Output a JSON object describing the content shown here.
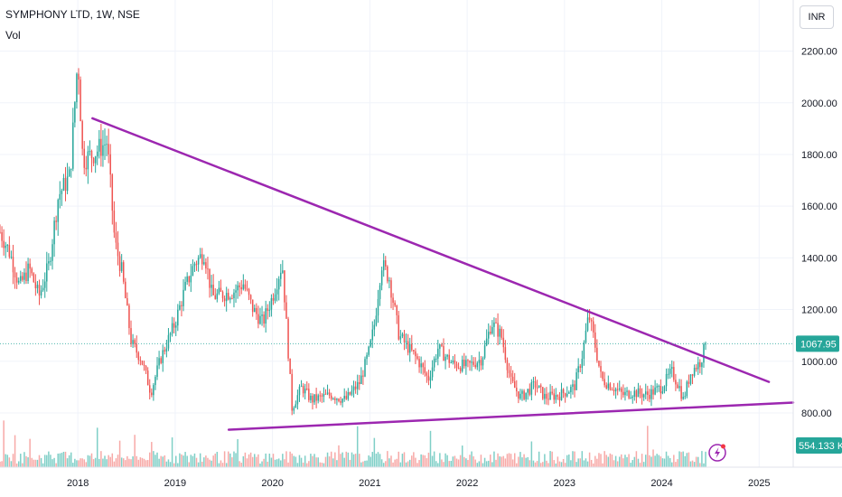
{
  "header": {
    "symbol_title": "SYMPHONY LTD, 1W, NSE",
    "volume_label": "Vol",
    "currency": "INR"
  },
  "colors": {
    "up": "#26a69a",
    "down": "#ef5350",
    "up_volume": "#7fcfc7",
    "down_volume": "#f7a9a7",
    "trendline": "#9c27b0",
    "last_price_line": "#26a69a",
    "grid": "#f0f3fa"
  },
  "chart_data": {
    "type": "candlestick",
    "title": "SYMPHONY LTD, 1W, NSE",
    "x_ticks": [
      "2018",
      "2019",
      "2020",
      "2021",
      "2022",
      "2023",
      "2024",
      "2025"
    ],
    "y_ticks": [
      "2200.00",
      "2000.00",
      "1800.00",
      "1600.00",
      "1400.00",
      "1200.00",
      "1000.00",
      "800.00"
    ],
    "ylim": [
      590,
      2230
    ],
    "xlim": [
      2017.2,
      2025.35
    ],
    "last_price": "1067.95",
    "last_volume": "554.133 K",
    "grid": true,
    "price_path": [
      [
        2017.2,
        1500
      ],
      [
        2017.3,
        1420
      ],
      [
        2017.4,
        1290
      ],
      [
        2017.5,
        1360
      ],
      [
        2017.6,
        1250
      ],
      [
        2017.7,
        1370
      ],
      [
        2017.8,
        1640
      ],
      [
        2017.92,
        1720
      ],
      [
        2018.0,
        2180
      ],
      [
        2018.05,
        1780
      ],
      [
        2018.15,
        1800
      ],
      [
        2018.3,
        1850
      ],
      [
        2018.38,
        1460
      ],
      [
        2018.45,
        1350
      ],
      [
        2018.55,
        1070
      ],
      [
        2018.65,
        1010
      ],
      [
        2018.75,
        880
      ],
      [
        2018.85,
        1010
      ],
      [
        2019.0,
        1150
      ],
      [
        2019.1,
        1280
      ],
      [
        2019.2,
        1380
      ],
      [
        2019.3,
        1420
      ],
      [
        2019.38,
        1250
      ],
      [
        2019.5,
        1260
      ],
      [
        2019.6,
        1270
      ],
      [
        2019.7,
        1300
      ],
      [
        2019.8,
        1200
      ],
      [
        2019.9,
        1150
      ],
      [
        2020.0,
        1250
      ],
      [
        2020.1,
        1380
      ],
      [
        2020.15,
        1100
      ],
      [
        2020.2,
        820
      ],
      [
        2020.3,
        900
      ],
      [
        2020.4,
        850
      ],
      [
        2020.5,
        860
      ],
      [
        2020.6,
        870
      ],
      [
        2020.75,
        850
      ],
      [
        2020.9,
        920
      ],
      [
        2021.0,
        1050
      ],
      [
        2021.05,
        1150
      ],
      [
        2021.12,
        1380
      ],
      [
        2021.2,
        1320
      ],
      [
        2021.3,
        1100
      ],
      [
        2021.5,
        1000
      ],
      [
        2021.6,
        930
      ],
      [
        2021.7,
        1050
      ],
      [
        2021.85,
        990
      ],
      [
        2022.0,
        980
      ],
      [
        2022.15,
        1010
      ],
      [
        2022.25,
        1150
      ],
      [
        2022.35,
        1100
      ],
      [
        2022.45,
        920
      ],
      [
        2022.55,
        860
      ],
      [
        2022.7,
        910
      ],
      [
        2022.8,
        860
      ],
      [
        2022.95,
        870
      ],
      [
        2023.1,
        900
      ],
      [
        2023.18,
        1020
      ],
      [
        2023.25,
        1180
      ],
      [
        2023.3,
        1090
      ],
      [
        2023.38,
        930
      ],
      [
        2023.5,
        900
      ],
      [
        2023.6,
        870
      ],
      [
        2023.7,
        880
      ],
      [
        2023.85,
        870
      ],
      [
        2024.0,
        900
      ],
      [
        2024.1,
        960
      ],
      [
        2024.18,
        900
      ],
      [
        2024.22,
        850
      ],
      [
        2024.3,
        960
      ],
      [
        2024.4,
        1000
      ],
      [
        2024.45,
        1067.95
      ]
    ],
    "trendlines": [
      {
        "name": "",
        "from": [
          2018.15,
          1940
        ],
        "to": [
          2025.1,
          920
        ]
      },
      {
        "name": "",
        "from": [
          2019.55,
          735
        ],
        "to": [
          2025.35,
          840
        ]
      }
    ]
  }
}
